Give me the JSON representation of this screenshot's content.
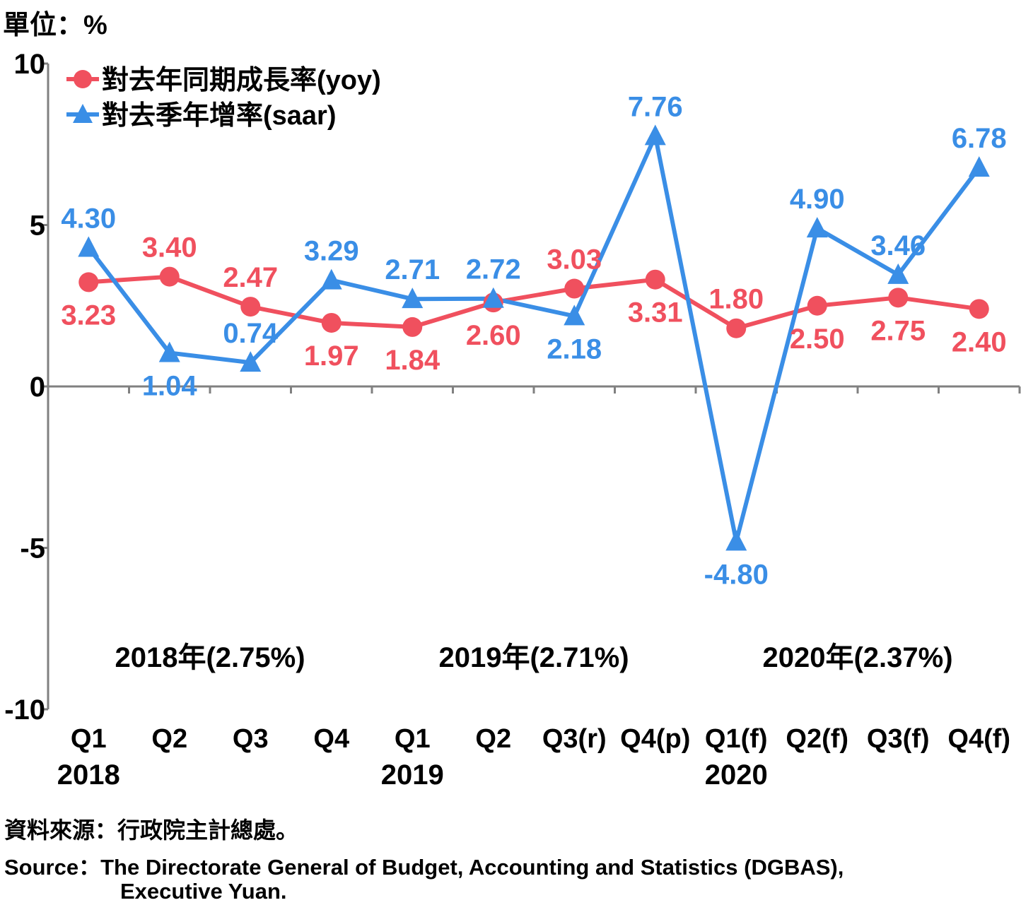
{
  "unit_label": "單位：%",
  "source_zh": "資料來源：行政院主計總處。",
  "source_en_1": "Source：The Directorate General of Budget, Accounting and Statistics (DGBAS),",
  "source_en_2": "Executive Yuan.",
  "chart_data": {
    "type": "line",
    "categories": [
      "Q1",
      "Q2",
      "Q3",
      "Q4",
      "Q1",
      "Q2",
      "Q3(r)",
      "Q4(p)",
      "Q1(f)",
      "Q2(f)",
      "Q3(f)",
      "Q4(f)"
    ],
    "year_labels": [
      {
        "index": 0,
        "label": "2018"
      },
      {
        "index": 4,
        "label": "2019"
      },
      {
        "index": 8,
        "label": "2020"
      }
    ],
    "annual_annotations": [
      {
        "center_index": 1.5,
        "label": "2018年(2.75%)"
      },
      {
        "center_index": 5.5,
        "label": "2019年(2.71%)"
      },
      {
        "center_index": 9.5,
        "label": "2020年(2.37%)"
      }
    ],
    "series": [
      {
        "name": "對去年同期成長率(yoy)",
        "color": "#f0505e",
        "marker": "circle",
        "values": [
          3.23,
          3.4,
          2.47,
          1.97,
          1.84,
          2.6,
          3.03,
          3.31,
          1.8,
          2.5,
          2.75,
          2.4
        ],
        "labels": [
          "3.23",
          "3.40",
          "2.47",
          "1.97",
          "1.84",
          "2.60",
          "3.03",
          "3.31",
          "1.80",
          "2.50",
          "2.75",
          "2.40"
        ],
        "label_pos": [
          "below",
          "above",
          "above",
          "below",
          "below",
          "below",
          "above",
          "below",
          "above",
          "below",
          "below",
          "below"
        ]
      },
      {
        "name": "對去季年增率(saar)",
        "color": "#3a8ee6",
        "marker": "triangle",
        "values": [
          4.3,
          1.04,
          0.74,
          3.29,
          2.71,
          2.72,
          2.18,
          7.76,
          -4.8,
          4.9,
          3.46,
          6.78
        ],
        "labels": [
          "4.30",
          "1.04",
          "0.74",
          "3.29",
          "2.71",
          "2.72",
          "2.18",
          "7.76",
          "-4.80",
          "4.90",
          "3.46",
          "6.78"
        ],
        "label_pos": [
          "above",
          "below",
          "above",
          "above",
          "above",
          "above",
          "below",
          "above",
          "below",
          "above",
          "above",
          "above"
        ]
      }
    ],
    "y_ticks": [
      10,
      5,
      0,
      -5,
      -10
    ],
    "ylim": [
      -10,
      10
    ],
    "grid": false,
    "legend_position": "top-left"
  }
}
